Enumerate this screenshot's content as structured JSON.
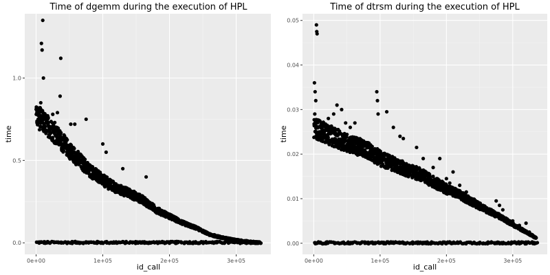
{
  "chart_data": [
    {
      "type": "scatter",
      "title": "Time of dgemm during the execution of HPL",
      "xlabel": "id_call",
      "ylabel": "time",
      "xlim": [
        -17000,
        352000
      ],
      "ylim": [
        -0.07,
        1.39
      ],
      "x_ticks": [
        0,
        100000,
        200000,
        300000
      ],
      "x_tick_labels": [
        "0e+00",
        "1e+05",
        "2e+05",
        "3e+05"
      ],
      "y_ticks": [
        0.0,
        0.5,
        1.0
      ],
      "y_tick_labels": [
        "0.0",
        "0.5",
        "1.0"
      ],
      "grid": true,
      "point_color": "#000000",
      "series": [
        {
          "band": [
            [
              0,
              0.77
            ],
            [
              20000,
              0.7
            ],
            [
              50000,
              0.56
            ],
            [
              80000,
              0.44
            ],
            [
              100000,
              0.38
            ],
            [
              120000,
              0.33
            ],
            [
              140000,
              0.3
            ],
            [
              160000,
              0.26
            ],
            [
              180000,
              0.2
            ],
            [
              200000,
              0.16
            ],
            [
              220000,
              0.12
            ],
            [
              240000,
              0.09
            ],
            [
              260000,
              0.05
            ],
            [
              280000,
              0.03
            ],
            [
              300000,
              0.015
            ],
            [
              320000,
              0.005
            ],
            [
              335000,
              0.0
            ]
          ],
          "baseline": 0.0,
          "outliers": [
            [
              3000,
              0.75
            ],
            [
              4000,
              0.78
            ],
            [
              5000,
              0.8
            ],
            [
              6000,
              0.82
            ],
            [
              7000,
              0.85
            ],
            [
              8000,
              1.21
            ],
            [
              9000,
              1.17
            ],
            [
              10000,
              1.35
            ],
            [
              11000,
              1.0
            ],
            [
              37000,
              1.12
            ],
            [
              36000,
              0.89
            ],
            [
              32000,
              0.79
            ],
            [
              25000,
              0.78
            ],
            [
              28000,
              0.73
            ],
            [
              52000,
              0.72
            ],
            [
              58000,
              0.72
            ],
            [
              75000,
              0.75
            ],
            [
              100000,
              0.6
            ],
            [
              105000,
              0.55
            ],
            [
              130000,
              0.45
            ],
            [
              165000,
              0.4
            ]
          ]
        }
      ]
    },
    {
      "type": "scatter",
      "title": "Time of dtrsm during the execution of HPL",
      "xlabel": "id_call",
      "ylabel": "time",
      "xlim": [
        -17000,
        352000
      ],
      "ylim": [
        -0.0025,
        0.0515
      ],
      "x_ticks": [
        0,
        100000,
        200000,
        300000
      ],
      "x_tick_labels": [
        "0e+00",
        "1e+05",
        "2e+05",
        "3e+05"
      ],
      "y_ticks": [
        0.0,
        0.01,
        0.02,
        0.03,
        0.04,
        0.05
      ],
      "y_tick_labels": [
        "0.00",
        "0.01",
        "0.02",
        "0.03",
        "0.04",
        "0.05"
      ],
      "grid": true,
      "point_color": "#000000",
      "series": [
        {
          "band": [
            [
              0,
              0.026
            ],
            [
              20000,
              0.0245
            ],
            [
              50000,
              0.0225
            ],
            [
              80000,
              0.021
            ],
            [
              100000,
              0.019
            ],
            [
              120000,
              0.0178
            ],
            [
              140000,
              0.0165
            ],
            [
              160000,
              0.0155
            ],
            [
              180000,
              0.0138
            ],
            [
              200000,
              0.0122
            ],
            [
              220000,
              0.0108
            ],
            [
              240000,
              0.0092
            ],
            [
              260000,
              0.0075
            ],
            [
              280000,
              0.006
            ],
            [
              300000,
              0.0042
            ],
            [
              320000,
              0.0025
            ],
            [
              335000,
              0.0012
            ]
          ],
          "baseline": 0.0,
          "outliers": [
            [
              1000,
              0.036
            ],
            [
              2000,
              0.034
            ],
            [
              3000,
              0.032
            ],
            [
              1500,
              0.029
            ],
            [
              4000,
              0.049
            ],
            [
              4500,
              0.0475
            ],
            [
              5000,
              0.047
            ],
            [
              22000,
              0.028
            ],
            [
              30000,
              0.029
            ],
            [
              35000,
              0.031
            ],
            [
              42000,
              0.03
            ],
            [
              48000,
              0.027
            ],
            [
              55000,
              0.026
            ],
            [
              62000,
              0.027
            ],
            [
              95000,
              0.034
            ],
            [
              96000,
              0.032
            ],
            [
              97000,
              0.029
            ],
            [
              110000,
              0.0295
            ],
            [
              120000,
              0.026
            ],
            [
              130000,
              0.024
            ],
            [
              135000,
              0.0235
            ],
            [
              155000,
              0.0215
            ],
            [
              165000,
              0.019
            ],
            [
              180000,
              0.017
            ],
            [
              190000,
              0.019
            ],
            [
              200000,
              0.0145
            ],
            [
              205000,
              0.0135
            ],
            [
              210000,
              0.016
            ],
            [
              220000,
              0.013
            ],
            [
              230000,
              0.0115
            ],
            [
              240000,
              0.0095
            ],
            [
              245000,
              0.008
            ],
            [
              275000,
              0.0095
            ],
            [
              280000,
              0.0085
            ],
            [
              285000,
              0.0075
            ],
            [
              300000,
              0.005
            ],
            [
              310000,
              0.004
            ],
            [
              320000,
              0.0045
            ],
            [
              325000,
              0.0025
            ]
          ]
        }
      ]
    }
  ]
}
